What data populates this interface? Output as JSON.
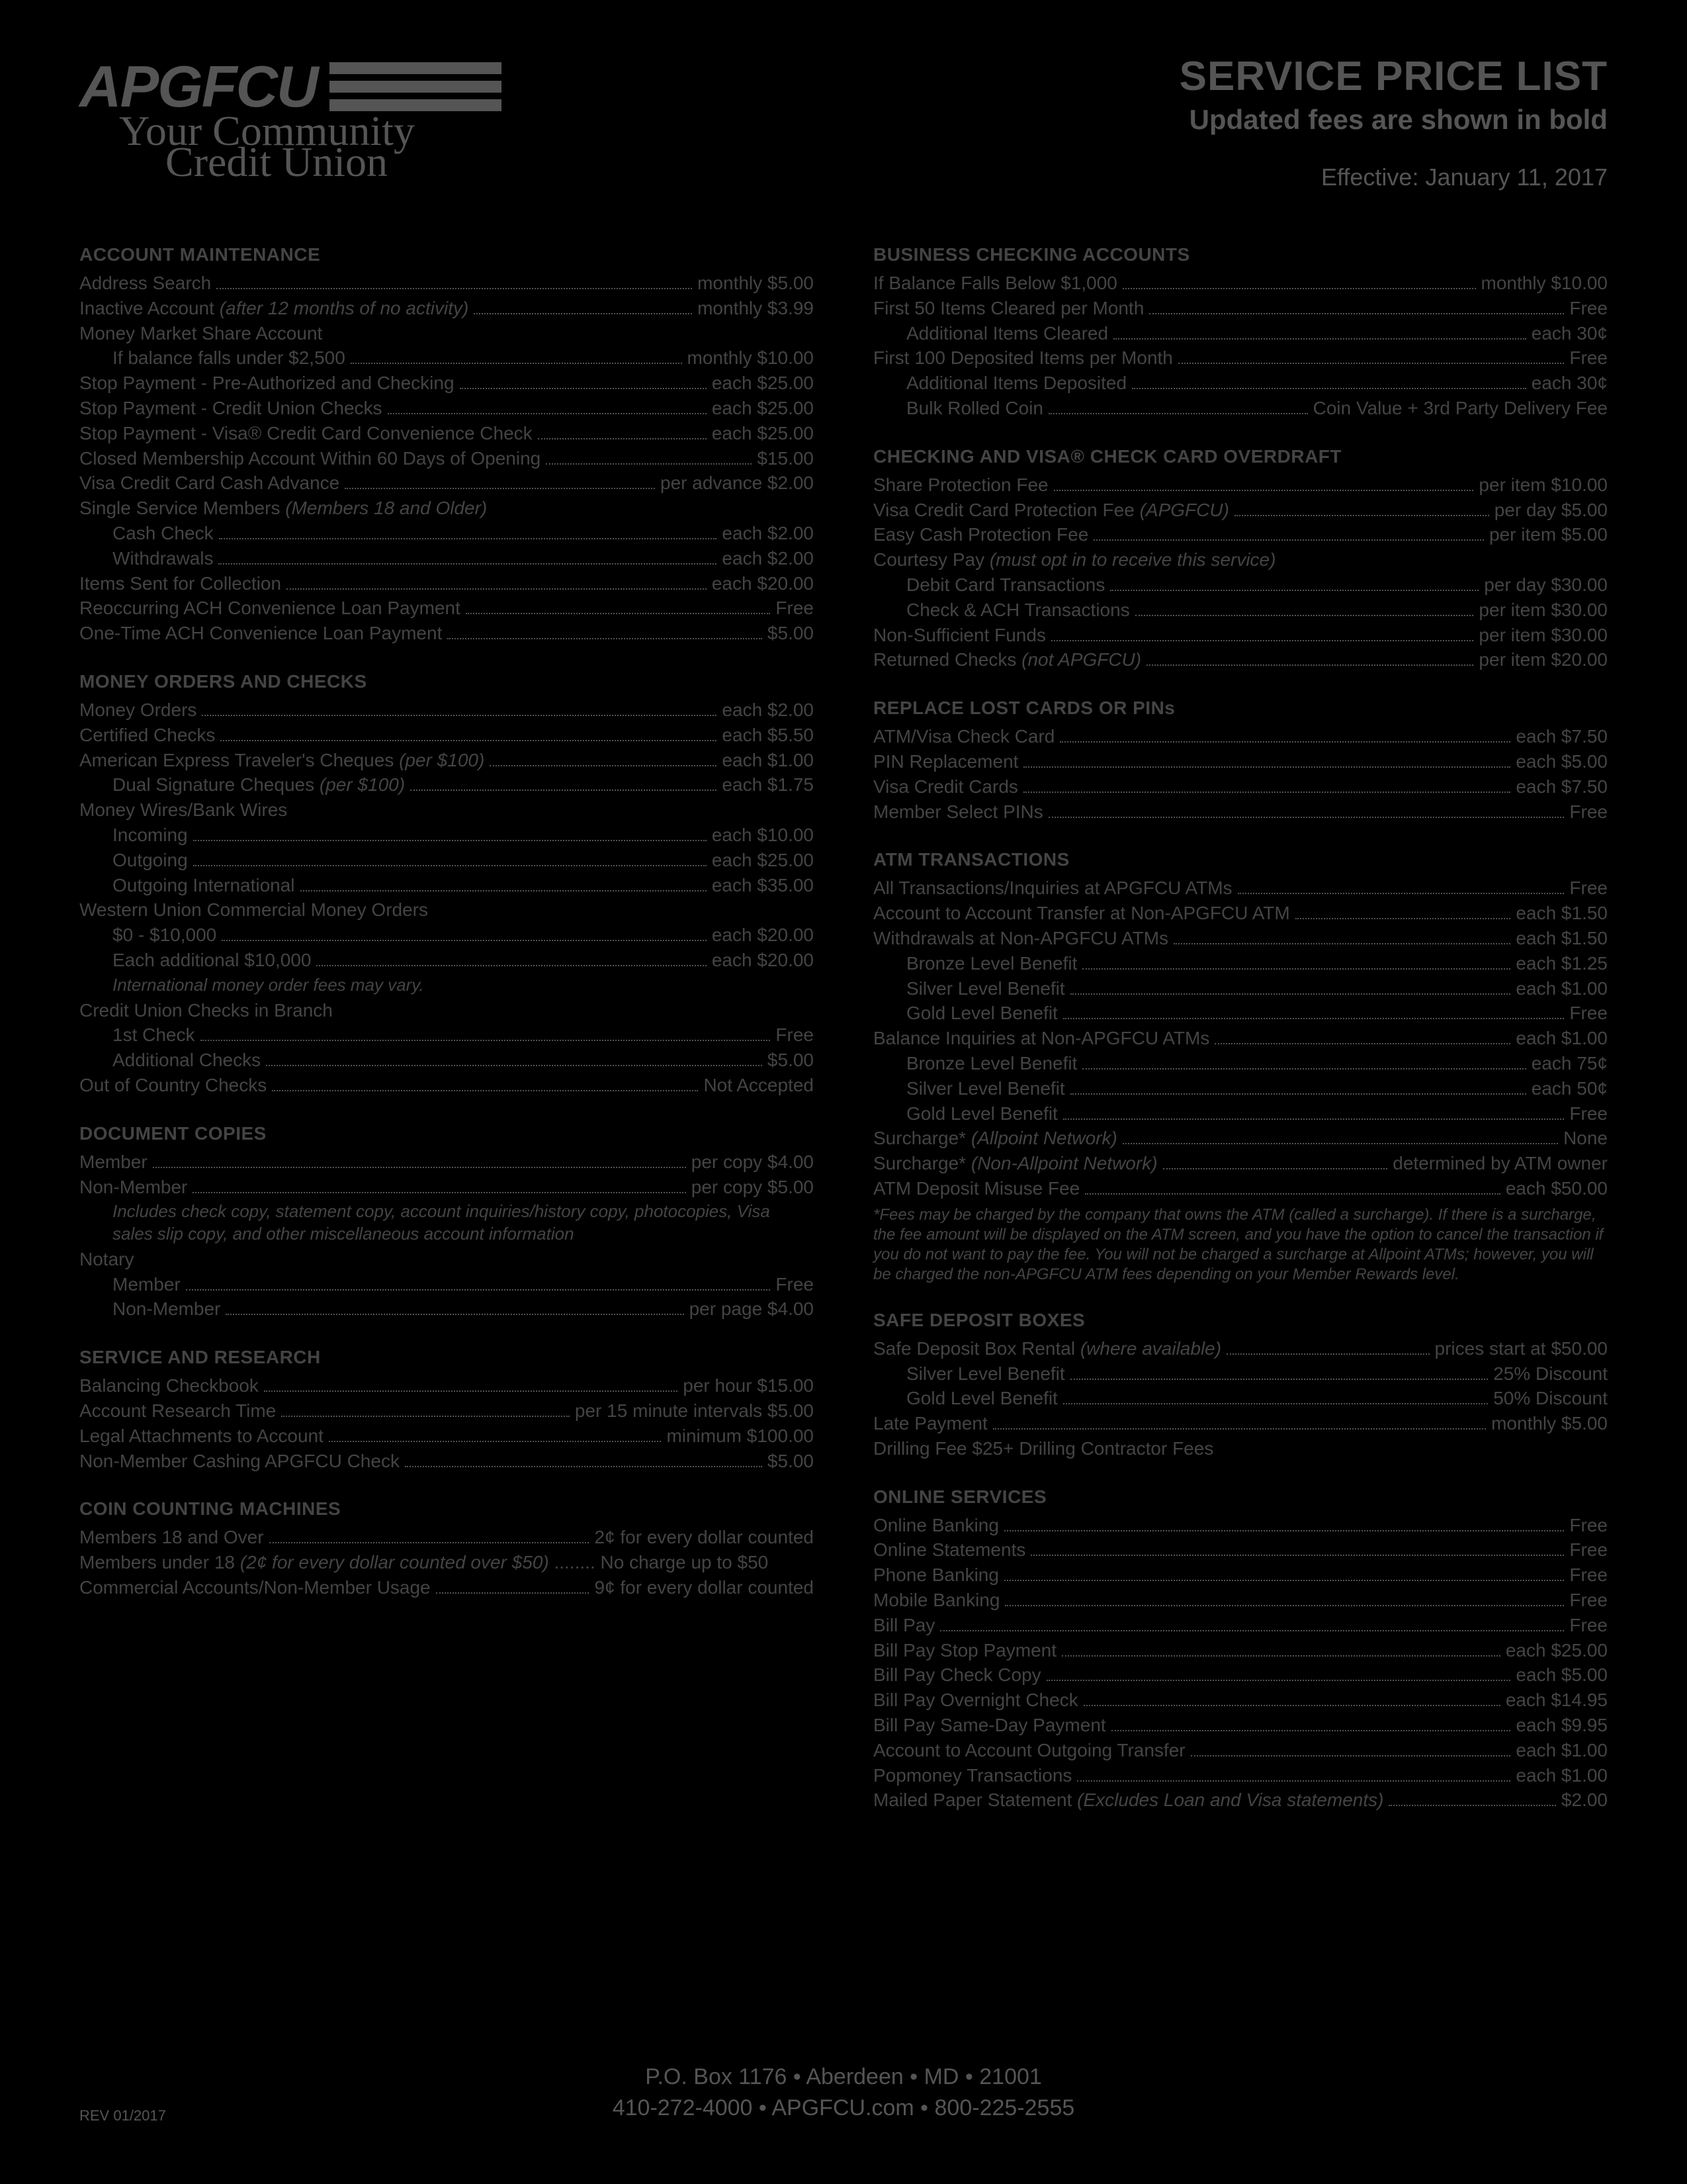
{
  "header": {
    "logo_text": "APGFCU",
    "tagline1": "Your Community",
    "tagline2": "Credit Union",
    "title": "SERVICE PRICE LIST",
    "subtitle": "Updated fees are shown in bold",
    "effective": "Effective: January 11, 2017"
  },
  "left": [
    {
      "type": "title",
      "text": "ACCOUNT MAINTENANCE"
    },
    {
      "type": "row",
      "label": "Address Search",
      "price": "monthly $5.00"
    },
    {
      "type": "row",
      "label": "Inactive Account ",
      "ital": "(after 12 months of no activity)",
      "price": "monthly $3.99"
    },
    {
      "type": "plain",
      "text": "Money Market Share Account"
    },
    {
      "type": "row",
      "indent": 1,
      "label": "If balance falls under $2,500",
      "price": "monthly $10.00"
    },
    {
      "type": "row",
      "label": "Stop Payment - Pre-Authorized and Checking",
      "price": "each $25.00"
    },
    {
      "type": "row",
      "label": "Stop Payment - Credit Union Checks",
      "price": "each $25.00"
    },
    {
      "type": "row",
      "label": "Stop Payment - Visa® Credit Card Convenience Check",
      "price": "each $25.00"
    },
    {
      "type": "row",
      "label": "Closed Membership Account Within 60 Days of Opening",
      "price": "$15.00"
    },
    {
      "type": "row",
      "label": "Visa Credit Card Cash Advance",
      "price": "per advance $2.00"
    },
    {
      "type": "plain",
      "text": "Single Service Members ",
      "ital": "(Members 18 and Older)"
    },
    {
      "type": "row",
      "indent": 1,
      "label": "Cash Check",
      "price": "each $2.00"
    },
    {
      "type": "row",
      "indent": 1,
      "label": "Withdrawals",
      "price": "each $2.00"
    },
    {
      "type": "row",
      "label": "Items Sent for Collection",
      "price": "each $20.00"
    },
    {
      "type": "row",
      "label": "Reoccurring ACH Convenience Loan Payment",
      "price": "Free"
    },
    {
      "type": "row",
      "label": "One-Time ACH Convenience Loan Payment",
      "price": "$5.00"
    },
    {
      "type": "title",
      "text": "MONEY ORDERS AND CHECKS"
    },
    {
      "type": "row",
      "label": "Money Orders",
      "price": "each $2.00"
    },
    {
      "type": "row",
      "label": "Certified Checks",
      "price": "each $5.50"
    },
    {
      "type": "row",
      "label": "American Express Traveler's Cheques ",
      "ital": "(per $100)",
      "price": "each $1.00"
    },
    {
      "type": "row",
      "indent": 1,
      "label": "Dual Signature Cheques ",
      "ital": "(per $100)",
      "price": "each $1.75"
    },
    {
      "type": "plain",
      "text": "Money Wires/Bank Wires"
    },
    {
      "type": "row",
      "indent": 1,
      "label": "Incoming",
      "price": "each $10.00"
    },
    {
      "type": "row",
      "indent": 1,
      "label": "Outgoing",
      "price": "each $25.00"
    },
    {
      "type": "row",
      "indent": 1,
      "label": "Outgoing International",
      "price": "each $35.00"
    },
    {
      "type": "plain",
      "text": "Western Union Commercial Money Orders"
    },
    {
      "type": "row",
      "indent": 1,
      "label": "$0 - $10,000",
      "price": "each $20.00"
    },
    {
      "type": "row",
      "indent": 1,
      "label": "Each additional $10,000",
      "price": "each $20.00"
    },
    {
      "type": "note",
      "text": "International money order fees may vary."
    },
    {
      "type": "plain",
      "text": "Credit Union Checks in Branch"
    },
    {
      "type": "row",
      "indent": 1,
      "label": "1st Check",
      "price": "Free"
    },
    {
      "type": "row",
      "indent": 1,
      "label": "Additional Checks",
      "price": "$5.00"
    },
    {
      "type": "row",
      "label": "Out of Country Checks",
      "price": "Not Accepted"
    },
    {
      "type": "title",
      "text": "DOCUMENT COPIES"
    },
    {
      "type": "row",
      "label": "Member",
      "price": "per copy $4.00"
    },
    {
      "type": "row",
      "label": "Non-Member",
      "price": "per copy $5.00"
    },
    {
      "type": "note",
      "text": "Includes check copy, statement copy, account inquiries/history copy, photocopies, Visa sales slip copy, and other miscellaneous account information"
    },
    {
      "type": "plain",
      "text": "Notary"
    },
    {
      "type": "row",
      "indent": 1,
      "label": "Member",
      "price": "Free"
    },
    {
      "type": "row",
      "indent": 1,
      "label": "Non-Member",
      "price": "per page $4.00"
    },
    {
      "type": "title",
      "text": "SERVICE AND RESEARCH"
    },
    {
      "type": "row",
      "label": "Balancing Checkbook",
      "price": "per hour $15.00"
    },
    {
      "type": "row",
      "label": "Account Research Time",
      "price": "per 15 minute intervals $5.00"
    },
    {
      "type": "row",
      "label": "Legal Attachments to Account",
      "price": "minimum $100.00"
    },
    {
      "type": "row",
      "label": "Non-Member Cashing APGFCU Check",
      "price": "$5.00"
    },
    {
      "type": "title",
      "text": "COIN COUNTING MACHINES"
    },
    {
      "type": "row",
      "label": "Members 18 and Over",
      "price": "2¢ for every dollar counted"
    },
    {
      "type": "row",
      "label": "Members under 18 ",
      "suffix": " No charge up to $50 ",
      "ital": "(2¢ for every dollar counted over $50)",
      "nodots": true
    },
    {
      "type": "row",
      "label": "Commercial Accounts/Non-Member Usage",
      "price": "9¢ for every dollar counted"
    }
  ],
  "right": [
    {
      "type": "title",
      "text": "BUSINESS CHECKING ACCOUNTS"
    },
    {
      "type": "row",
      "label": "If Balance Falls Below $1,000",
      "price": "monthly $10.00"
    },
    {
      "type": "row",
      "label": "First 50 Items Cleared per Month",
      "price": "Free"
    },
    {
      "type": "row",
      "indent": 1,
      "label": "Additional Items Cleared",
      "price": "each 30¢"
    },
    {
      "type": "row",
      "label": "First 100 Deposited Items per Month",
      "price": "Free"
    },
    {
      "type": "row",
      "indent": 1,
      "label": "Additional Items Deposited",
      "price": "each 30¢"
    },
    {
      "type": "row",
      "indent": 1,
      "label": "Bulk Rolled Coin",
      "price": "Coin Value + 3rd Party Delivery Fee"
    },
    {
      "type": "title",
      "text": "CHECKING AND VISA® CHECK CARD OVERDRAFT"
    },
    {
      "type": "row",
      "label": "Share Protection Fee",
      "price": "per item $10.00"
    },
    {
      "type": "row",
      "label": "Visa Credit Card Protection Fee ",
      "ital": "(APGFCU)",
      "price": "per day $5.00"
    },
    {
      "type": "row",
      "label": "Easy Cash Protection Fee",
      "price": "per item $5.00"
    },
    {
      "type": "plain",
      "text": "Courtesy Pay ",
      "ital": "(must opt in to receive this service)"
    },
    {
      "type": "row",
      "indent": 1,
      "label": "Debit Card Transactions",
      "price": "per day $30.00"
    },
    {
      "type": "row",
      "indent": 1,
      "label": "Check & ACH Transactions",
      "price": "per item $30.00"
    },
    {
      "type": "row",
      "label": "Non-Sufficient Funds",
      "price": "per item $30.00"
    },
    {
      "type": "row",
      "label": "Returned Checks ",
      "ital": "(not  APGFCU)",
      "price": "per item $20.00"
    },
    {
      "type": "title",
      "text": "REPLACE LOST CARDS OR PINs"
    },
    {
      "type": "row",
      "label": "ATM/Visa Check Card",
      "price": "each $7.50"
    },
    {
      "type": "row",
      "label": "PIN Replacement",
      "price": "each $5.00"
    },
    {
      "type": "row",
      "label": "Visa Credit Cards",
      "price": "each $7.50"
    },
    {
      "type": "row",
      "label": "Member Select PINs",
      "price": "Free"
    },
    {
      "type": "title",
      "text": "ATM TRANSACTIONS"
    },
    {
      "type": "row",
      "label": "All Transactions/Inquiries at APGFCU ATMs",
      "price": "Free"
    },
    {
      "type": "row",
      "label": "Account to Account Transfer at Non-APGFCU ATM",
      "price": "each $1.50"
    },
    {
      "type": "row",
      "label": "Withdrawals at Non-APGFCU ATMs",
      "price": "each $1.50"
    },
    {
      "type": "row",
      "indent": 1,
      "label": "Bronze Level Benefit",
      "price": "each $1.25"
    },
    {
      "type": "row",
      "indent": 1,
      "label": "Silver Level Benefit",
      "price": "each $1.00"
    },
    {
      "type": "row",
      "indent": 1,
      "label": "Gold Level Benefit",
      "price": "Free"
    },
    {
      "type": "row",
      "label": "Balance Inquiries at Non-APGFCU ATMs",
      "price": "each $1.00"
    },
    {
      "type": "row",
      "indent": 1,
      "label": "Bronze Level Benefit",
      "price": "each 75¢"
    },
    {
      "type": "row",
      "indent": 1,
      "label": "Silver Level Benefit",
      "price": "each 50¢"
    },
    {
      "type": "row",
      "indent": 1,
      "label": "Gold Level Benefit",
      "price": "Free"
    },
    {
      "type": "row",
      "label": "Surcharge* ",
      "ital": "(Allpoint Network)",
      "price": "None"
    },
    {
      "type": "row",
      "label": "Surcharge* ",
      "ital": "(Non-Allpoint Network)",
      "price": "determined by ATM owner"
    },
    {
      "type": "row",
      "label": "ATM Deposit Misuse Fee",
      "price": "each $50.00"
    },
    {
      "type": "footnote",
      "text": "*Fees may be charged by the company that owns the ATM (called a surcharge). If there is a surcharge, the fee amount will be displayed on the ATM screen, and you have the option to cancel the transaction if you do not want to pay the fee. You will not be charged a surcharge at Allpoint ATMs; however, you will be charged the non-APGFCU ATM fees depending on your Member Rewards level."
    },
    {
      "type": "title",
      "text": "SAFE DEPOSIT BOXES"
    },
    {
      "type": "row",
      "label": "Safe Deposit Box Rental ",
      "ital": "(where available)",
      "price": "prices start at $50.00"
    },
    {
      "type": "row",
      "indent": 1,
      "label": "Silver Level Benefit",
      "price": "25% Discount"
    },
    {
      "type": "row",
      "indent": 1,
      "label": "Gold Level Benefit",
      "price": "50% Discount"
    },
    {
      "type": "row",
      "label": "Late Payment",
      "price": "monthly $5.00"
    },
    {
      "type": "plain",
      "text": "Drilling Fee $25+ Drilling Contractor Fees"
    },
    {
      "type": "title",
      "text": "ONLINE SERVICES"
    },
    {
      "type": "row",
      "label": "Online Banking",
      "price": "Free"
    },
    {
      "type": "row",
      "label": "Online Statements",
      "price": "Free"
    },
    {
      "type": "row",
      "label": "Phone Banking",
      "price": "Free"
    },
    {
      "type": "row",
      "label": "Mobile Banking",
      "price": "Free"
    },
    {
      "type": "row",
      "label": "Bill Pay",
      "price": "Free"
    },
    {
      "type": "row",
      "label": "Bill Pay Stop Payment",
      "price": "each $25.00"
    },
    {
      "type": "row",
      "label": "Bill Pay Check Copy",
      "price": "each $5.00"
    },
    {
      "type": "row",
      "label": "Bill Pay Overnight Check",
      "price": "each $14.95"
    },
    {
      "type": "row",
      "label": "Bill Pay Same-Day Payment",
      "price": "each $9.95"
    },
    {
      "type": "row",
      "label": "Account to Account Outgoing Transfer",
      "price": "each $1.00"
    },
    {
      "type": "row",
      "label": "Popmoney Transactions",
      "price": "each $1.00"
    },
    {
      "type": "row",
      "label": "Mailed Paper Statement ",
      "ital": "(Excludes Loan and Visa statements)",
      "price": "$2.00"
    }
  ],
  "footer": {
    "line1": "P.O. Box 1176 • Aberdeen • MD • 21001",
    "line2": "410-272-4000 • APGFCU.com • 800-225-2555",
    "rev": "REV 01/2017"
  }
}
